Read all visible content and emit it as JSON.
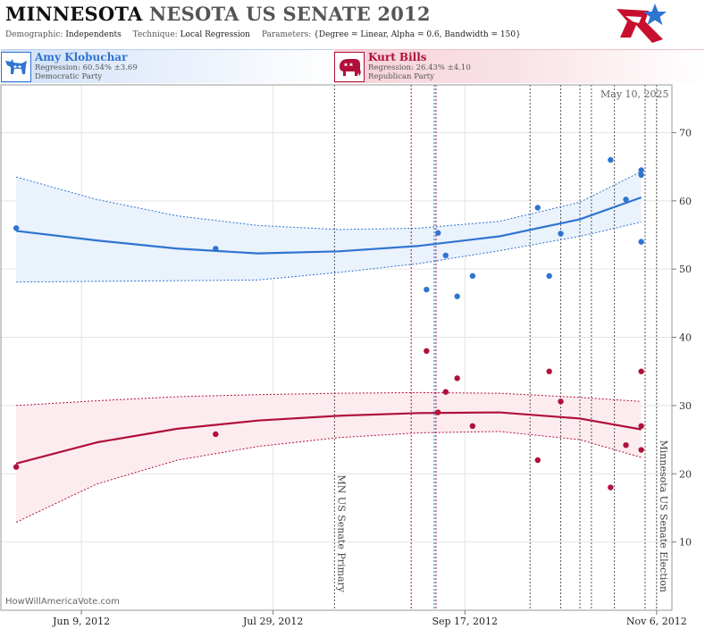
{
  "header": {
    "title_state": "MINNESOTA",
    "title_rest": "NESOTA US SENATE 2012",
    "demographic_label": "Demographic:",
    "demographic_value": "Independents",
    "technique_label": "Technique:",
    "technique_value": "Local Regression",
    "parameters_label": "Parameters:",
    "parameters_value": "{Degree = Linear, Alpha = 0.6, Bandwidth = 150}"
  },
  "candidates": [
    {
      "name": "Amy Klobuchar",
      "regression": "Regression: 60.54% ±3.69",
      "party": "Democratic Party",
      "icon": "donkey-icon",
      "color": "#2f74d0"
    },
    {
      "name": "Kurt Bills",
      "regression": "Regression: 26.43% ±4.10",
      "party": "Republican Party",
      "icon": "elephant-icon",
      "color": "#b0103a"
    }
  ],
  "footer": {
    "site": "HowWillAmericaVote.com",
    "date": "May 10, 2025"
  },
  "chart_data": {
    "type": "scatter",
    "x_tick_labels": [
      "Jun 9, 2012",
      "Jul 29, 2012",
      "Sep 17, 2012",
      "Nov 6, 2012"
    ],
    "x_range": [
      "2012-05-19",
      "2012-11-10"
    ],
    "y_range": [
      0,
      77
    ],
    "y_ticks": [
      10,
      20,
      30,
      40,
      50,
      60,
      70
    ],
    "grid": true,
    "events": [
      {
        "date": "2012-08-14",
        "label": "MN US Senate Primary"
      },
      {
        "date": "2012-11-06",
        "label": "Minnesota US Senate Election"
      }
    ],
    "poll_lines": [
      {
        "date": "2012-09-03",
        "color": "#b0103a"
      },
      {
        "date": "2012-09-09",
        "color": "#2f74d0"
      },
      {
        "date": "2012-09-09",
        "color": "#b0103a"
      },
      {
        "date": "2012-10-04"
      },
      {
        "date": "2012-10-12"
      },
      {
        "date": "2012-10-17"
      },
      {
        "date": "2012-10-20"
      },
      {
        "date": "2012-10-26"
      },
      {
        "date": "2012-11-03"
      }
    ],
    "series": [
      {
        "color": "#2f74d0",
        "band_color": "#eaf2fc",
        "points": [
          [
            "2012-05-23",
            56
          ],
          [
            "2012-07-14",
            53
          ],
          [
            "2012-09-07",
            47
          ],
          [
            "2012-09-10",
            55.3
          ],
          [
            "2012-09-12",
            52
          ],
          [
            "2012-09-15",
            46
          ],
          [
            "2012-09-19",
            49
          ],
          [
            "2012-10-06",
            59
          ],
          [
            "2012-10-09",
            49
          ],
          [
            "2012-10-12",
            55.2
          ],
          [
            "2012-10-25",
            66
          ],
          [
            "2012-10-29",
            60.2
          ],
          [
            "2012-11-02",
            64.5
          ],
          [
            "2012-11-02",
            63.8
          ],
          [
            "2012-11-02",
            54
          ]
        ],
        "trend": [
          [
            "2012-05-23",
            55.6
          ],
          [
            "2012-06-13",
            54.2
          ],
          [
            "2012-07-04",
            53
          ],
          [
            "2012-07-25",
            52.3
          ],
          [
            "2012-08-15",
            52.6
          ],
          [
            "2012-09-05",
            53.4
          ],
          [
            "2012-09-26",
            54.8
          ],
          [
            "2012-10-17",
            57.3
          ],
          [
            "2012-11-02",
            60.5
          ]
        ],
        "upper": [
          [
            "2012-05-23",
            63.5
          ],
          [
            "2012-06-13",
            60.2
          ],
          [
            "2012-07-04",
            57.8
          ],
          [
            "2012-07-25",
            56.4
          ],
          [
            "2012-08-15",
            55.8
          ],
          [
            "2012-09-05",
            56
          ],
          [
            "2012-09-26",
            57
          ],
          [
            "2012-10-17",
            59.8
          ],
          [
            "2012-11-02",
            64.3
          ]
        ],
        "lower": [
          [
            "2012-05-23",
            48.1
          ],
          [
            "2012-06-13",
            48.2
          ],
          [
            "2012-07-04",
            48.3
          ],
          [
            "2012-07-25",
            48.4
          ],
          [
            "2012-08-15",
            49.5
          ],
          [
            "2012-09-05",
            50.8
          ],
          [
            "2012-09-26",
            52.7
          ],
          [
            "2012-10-17",
            54.8
          ],
          [
            "2012-11-02",
            56.9
          ]
        ]
      },
      {
        "color": "#b0103a",
        "band_color": "#fcecef",
        "points": [
          [
            "2012-05-23",
            21
          ],
          [
            "2012-07-14",
            25.8
          ],
          [
            "2012-09-07",
            38
          ],
          [
            "2012-09-10",
            29
          ],
          [
            "2012-09-12",
            32
          ],
          [
            "2012-09-15",
            34
          ],
          [
            "2012-09-19",
            27
          ],
          [
            "2012-10-06",
            22
          ],
          [
            "2012-10-09",
            35
          ],
          [
            "2012-10-12",
            30.6
          ],
          [
            "2012-10-25",
            18
          ],
          [
            "2012-10-29",
            24.2
          ],
          [
            "2012-11-02",
            35
          ],
          [
            "2012-11-02",
            27
          ],
          [
            "2012-11-02",
            23.5
          ]
        ],
        "trend": [
          [
            "2012-05-23",
            21.5
          ],
          [
            "2012-06-13",
            24.6
          ],
          [
            "2012-07-04",
            26.6
          ],
          [
            "2012-07-25",
            27.8
          ],
          [
            "2012-08-15",
            28.5
          ],
          [
            "2012-09-05",
            28.9
          ],
          [
            "2012-09-26",
            29
          ],
          [
            "2012-10-17",
            28.1
          ],
          [
            "2012-11-02",
            26.5
          ]
        ],
        "upper": [
          [
            "2012-05-23",
            30
          ],
          [
            "2012-06-13",
            30.7
          ],
          [
            "2012-07-04",
            31.3
          ],
          [
            "2012-07-25",
            31.6
          ],
          [
            "2012-08-15",
            31.8
          ],
          [
            "2012-09-05",
            31.9
          ],
          [
            "2012-09-26",
            31.8
          ],
          [
            "2012-10-17",
            31.2
          ],
          [
            "2012-11-02",
            30.6
          ]
        ],
        "lower": [
          [
            "2012-05-23",
            12.9
          ],
          [
            "2012-06-13",
            18.5
          ],
          [
            "2012-07-04",
            22
          ],
          [
            "2012-07-25",
            24
          ],
          [
            "2012-08-15",
            25.3
          ],
          [
            "2012-09-05",
            26
          ],
          [
            "2012-09-26",
            26.2
          ],
          [
            "2012-10-17",
            25
          ],
          [
            "2012-11-02",
            22.4
          ]
        ]
      }
    ]
  }
}
